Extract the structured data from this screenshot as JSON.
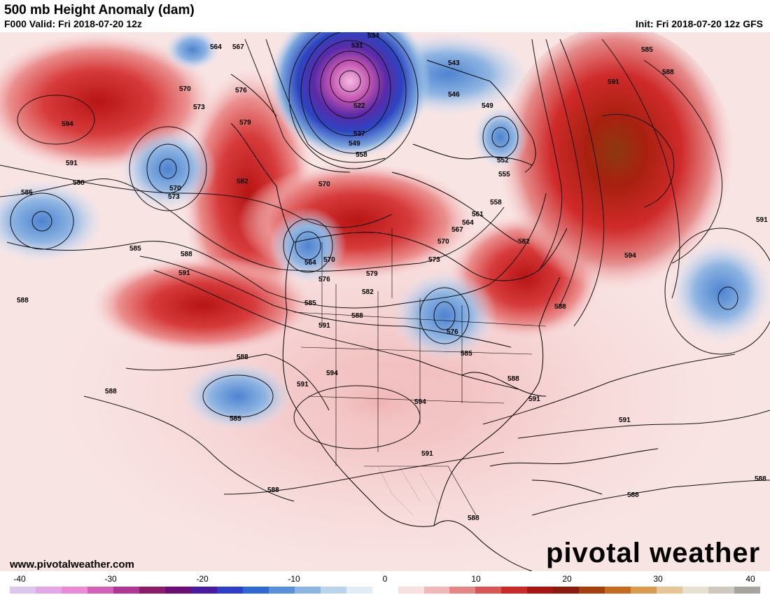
{
  "header": {
    "title": "500 mb Height Anomaly (dam)",
    "valid": "F000 Valid: Fri 2018-07-20 12z",
    "init": "Init: Fri 2018-07-20 12z GFS"
  },
  "footer": {
    "url": "www.pivotalweather.com",
    "brand": "pivotal weather"
  },
  "colorbar": {
    "labels": [
      "-40",
      "-30",
      "-20",
      "-10",
      "0",
      "10",
      "20",
      "30",
      "40"
    ],
    "colors": [
      "#dcc6ee",
      "#e3a6e6",
      "#e98bd6",
      "#d461b8",
      "#b13595",
      "#8c1c6a",
      "#6b0f75",
      "#4a1aa0",
      "#2c3fc6",
      "#2f6ad3",
      "#5891da",
      "#8db5e2",
      "#bad4ee",
      "#e2ecf7",
      "#ffffff",
      "#f8e0e0",
      "#f0b8b8",
      "#e58686",
      "#d95555",
      "#cb2a2a",
      "#a81414",
      "#8d1a0e",
      "#a4400e",
      "#c46a21",
      "#d99b4f",
      "#e6c597",
      "#e8e1cf",
      "#cfc8bf",
      "#a9a39d"
    ]
  },
  "contours": [
    {
      "text": "534"
    },
    {
      "text": "531"
    },
    {
      "text": "543"
    },
    {
      "text": "546"
    },
    {
      "text": "549"
    },
    {
      "text": "552"
    },
    {
      "text": "555"
    },
    {
      "text": "558"
    },
    {
      "text": "561"
    },
    {
      "text": "564"
    },
    {
      "text": "567"
    },
    {
      "text": "570"
    },
    {
      "text": "573"
    },
    {
      "text": "576"
    },
    {
      "text": "579"
    },
    {
      "text": "582"
    },
    {
      "text": "585"
    },
    {
      "text": "588"
    },
    {
      "text": "591"
    },
    {
      "text": "594"
    },
    {
      "text": "522"
    },
    {
      "text": "537"
    }
  ]
}
